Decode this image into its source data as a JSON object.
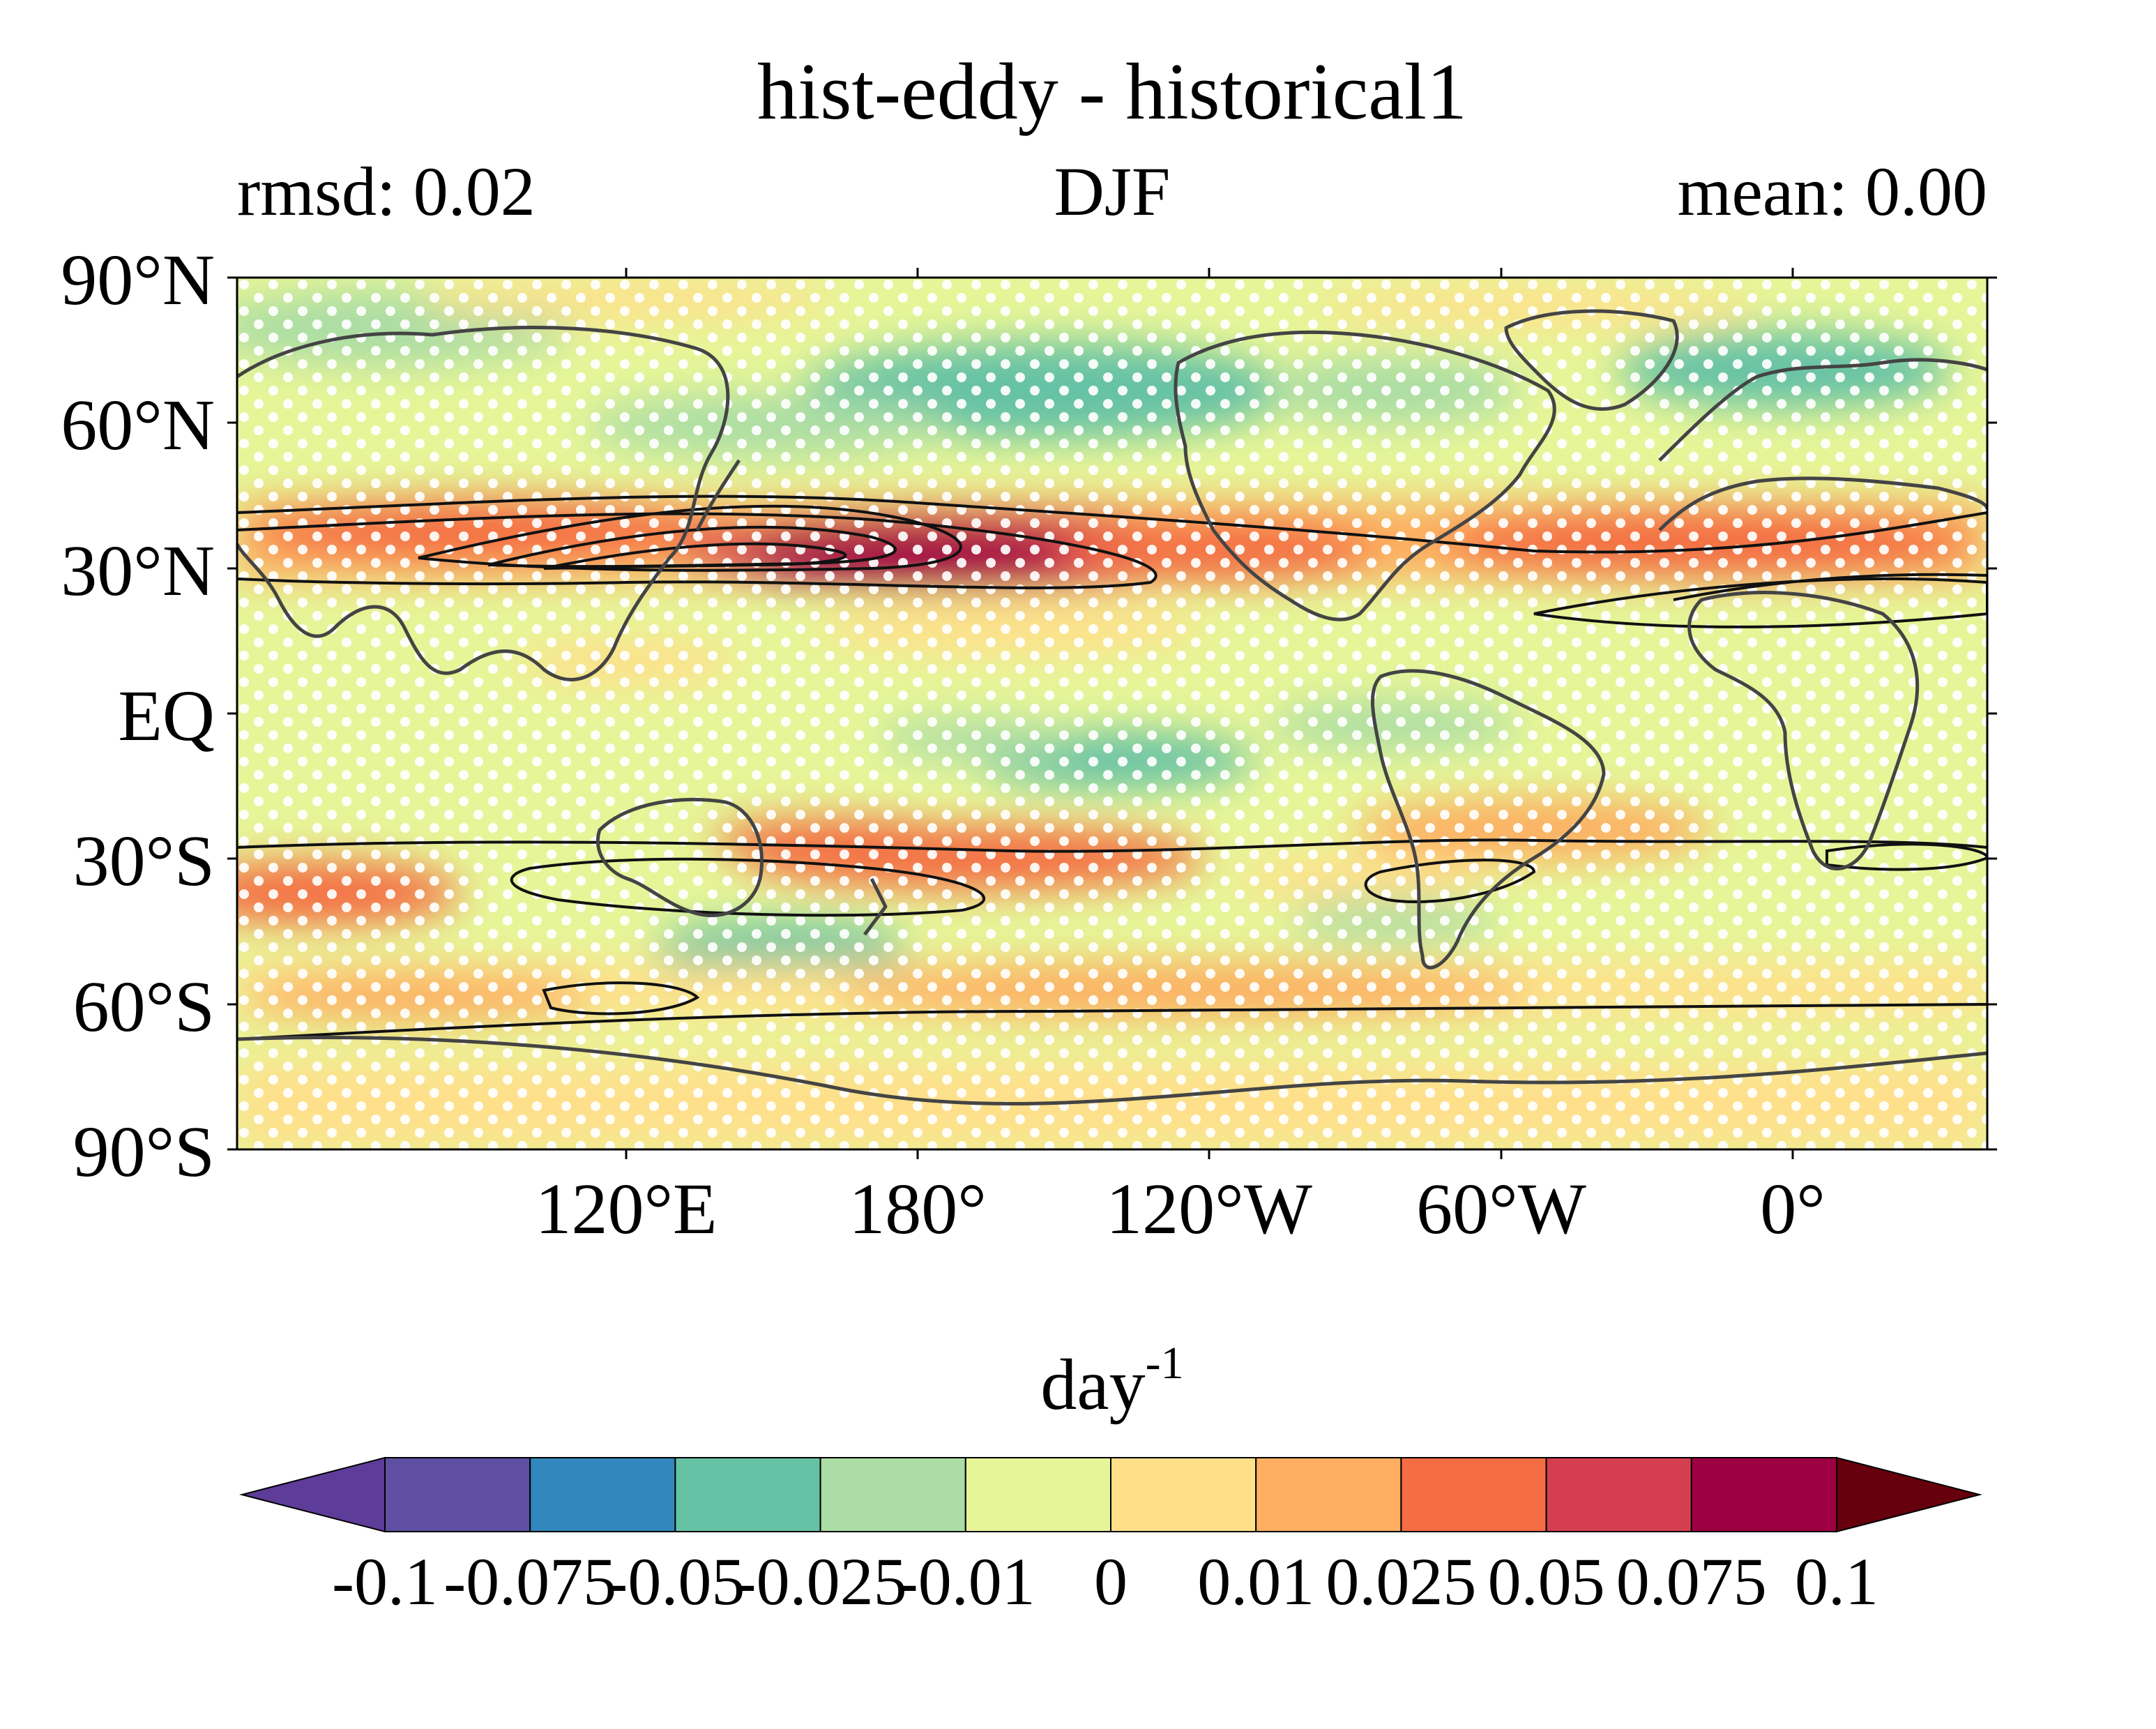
{
  "figure": {
    "title": "hist-eddy - historical1",
    "left_subtitle": "rmsd: 0.02",
    "center_subtitle": "DJF",
    "right_subtitle": "mean: 0.00"
  },
  "map": {
    "projection": "equirectangular",
    "lon_range": [
      60,
      420
    ],
    "lat_range": [
      -90,
      90
    ],
    "y_tick_labels": [
      "90°N",
      "60°N",
      "30°N",
      "EQ",
      "30°S",
      "60°S",
      "90°S"
    ],
    "x_tick_labels": [
      "120°E",
      "180°",
      "120°W",
      "60°W",
      "0°"
    ],
    "stippling": "white dots (significance)",
    "contours": "black lines (climatology)"
  },
  "colorbar": {
    "unit_base": "day",
    "unit_exponent": "-1",
    "tick_labels": [
      "-0.1",
      "-0.075",
      "-0.05",
      "-0.025",
      "-0.01",
      "0",
      "0.01",
      "0.025",
      "0.05",
      "0.075",
      "0.1"
    ],
    "colors": [
      "#5e3c99",
      "#5e4fa2",
      "#3288bd",
      "#66c2a5",
      "#abdda4",
      "#e6f598",
      "#fee08b",
      "#fdae61",
      "#f46d43",
      "#d53e4f",
      "#9e0142",
      "#67000d"
    ],
    "extend": "both"
  },
  "chart_data": {
    "type": "heatmap",
    "title": "hist-eddy - historical1",
    "subtitle_left": "rmsd: 0.02",
    "subtitle_center": "DJF",
    "subtitle_right": "mean: 0.00",
    "xlabel": "",
    "ylabel": "",
    "x_ticks": [
      "120°E",
      "180°",
      "120°W",
      "60°W",
      "0°"
    ],
    "y_ticks": [
      "90°N",
      "60°N",
      "30°N",
      "EQ",
      "30°S",
      "60°S",
      "90°S"
    ],
    "colorbar_label": "day-1",
    "levels": [
      -0.1,
      -0.075,
      -0.05,
      -0.025,
      -0.01,
      0,
      0.01,
      0.025,
      0.05,
      0.075,
      0.1
    ],
    "features": [
      {
        "region": "North Pacific jet 25-40°N, 150°E-140°W",
        "value": 0.09
      },
      {
        "region": "North Atlantic 25-40°N, 60°W-0°",
        "value": 0.05
      },
      {
        "region": "South Pacific 30-40°S, 150°E-120°W",
        "value": 0.05
      },
      {
        "region": "Arctic 60-75°N",
        "value": -0.03
      },
      {
        "region": "Tropical South Pacific 5-15°S",
        "value": -0.025
      }
    ]
  }
}
